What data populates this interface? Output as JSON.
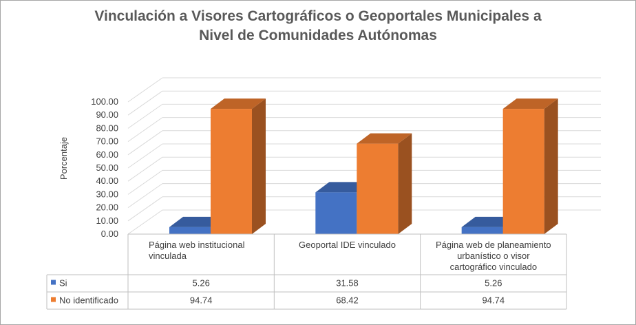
{
  "chart_data": {
    "type": "bar",
    "title_line1": "Vinculación a Visores Cartográficos o Geoportales Municipales a",
    "title_line2": "Nivel de Comunidades Autónomas",
    "ylabel": "Porcentaje",
    "ylim": [
      0,
      100
    ],
    "yticks": [
      "0.00",
      "10.00",
      "20.00",
      "30.00",
      "40.00",
      "50.00",
      "60.00",
      "70.00",
      "80.00",
      "90.00",
      "100.00"
    ],
    "categories": [
      [
        "Página web institucional",
        "vinculada"
      ],
      [
        "Geoportal IDE vinculado"
      ],
      [
        "Página web de planeamiento",
        "urbanístico o visor",
        "cartográfico vinculado"
      ]
    ],
    "series": [
      {
        "name": "Si",
        "values": [
          5.26,
          31.58,
          5.26
        ],
        "display": [
          "5.26",
          "31.58",
          "5.26"
        ],
        "color": "#4472c4"
      },
      {
        "name": "No identificado",
        "values": [
          94.74,
          68.42,
          94.74
        ],
        "display": [
          "94.74",
          "68.42",
          "94.74"
        ],
        "color": "#ed7d31"
      }
    ],
    "grid": true,
    "legend": "data-table",
    "style": "3d-clustered-column"
  }
}
